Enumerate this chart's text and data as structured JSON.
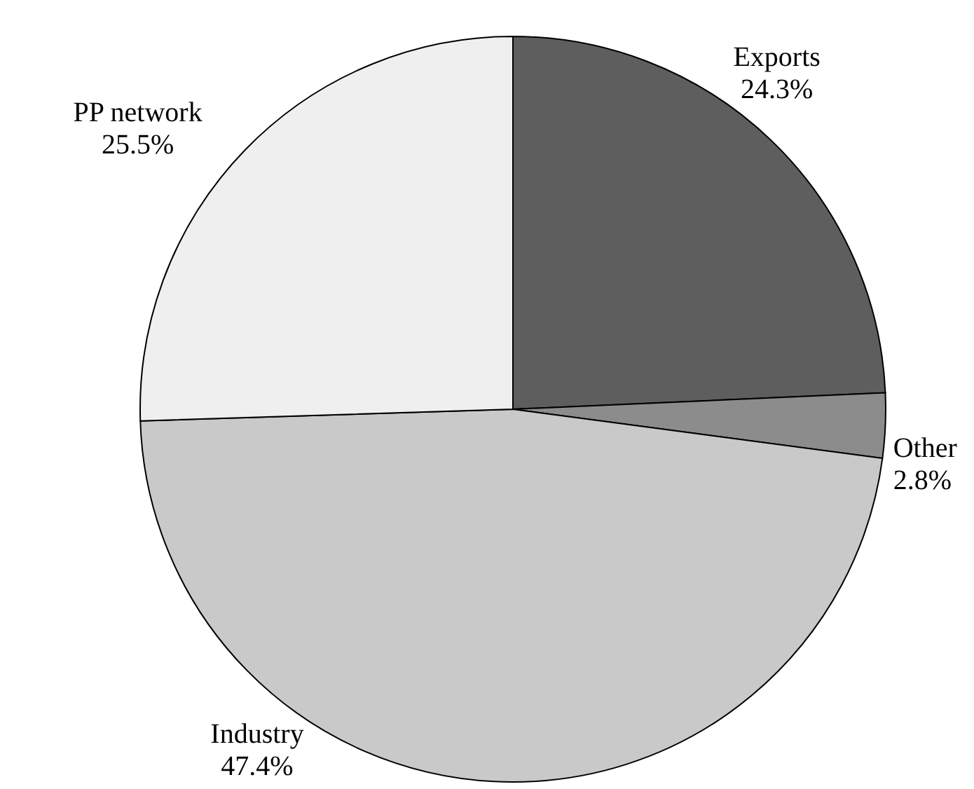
{
  "chart_data": {
    "type": "pie",
    "categories": [
      "Exports",
      "Other",
      "Industry",
      "PP network"
    ],
    "values": [
      24.3,
      2.8,
      47.4,
      25.5
    ],
    "colors": [
      "#5e5e5e",
      "#8c8c8c",
      "#c9c9c9",
      "#efefef"
    ],
    "value_labels": [
      "24.3%",
      "2.8%",
      "47.4%",
      "25.5%"
    ]
  }
}
